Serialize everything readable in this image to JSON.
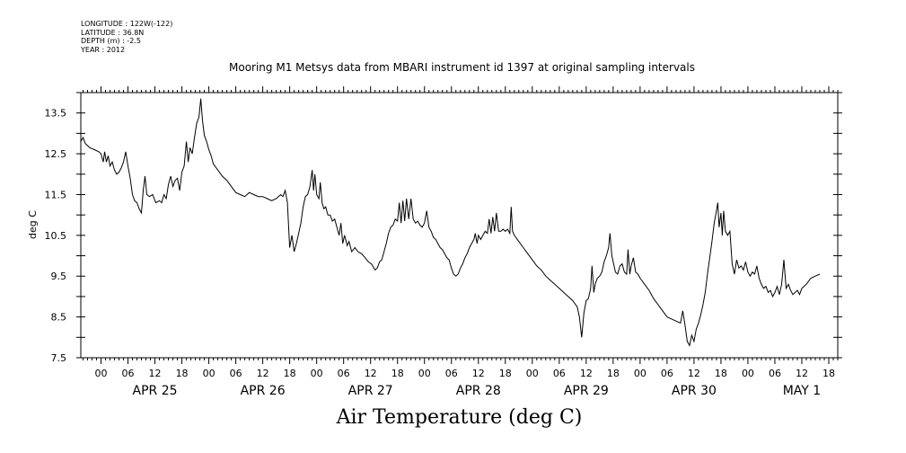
{
  "header": {
    "longitude": "LONGITUDE : 122W(-122)",
    "latitude": "LATITUDE : 36.8N",
    "depth": "DEPTH (m) : -2.5",
    "year": "YEAR : 2012"
  },
  "chart_data": {
    "type": "line",
    "title": "Mooring M1 Metsys data from MBARI instrument id 1397 at original sampling intervals",
    "xlabel": "Air Temperature (deg C)",
    "ylabel": "deg C",
    "ylim": [
      7.5,
      14.0
    ],
    "yticks": [
      "7.5",
      "8.5",
      "9.5",
      "10.5",
      "11.5",
      "12.5",
      "13.5"
    ],
    "xlim_hours": [
      -4.5,
      164
    ],
    "x_unit": "hours from 2012-04-25 00:00",
    "xtick_hours": [
      "00",
      "06",
      "12",
      "18",
      "00",
      "06",
      "12",
      "18",
      "00",
      "06",
      "12",
      "18",
      "00",
      "06",
      "12",
      "18",
      "00",
      "06",
      "12",
      "18",
      "00",
      "06",
      "12",
      "18",
      "00",
      "06",
      "12",
      "18"
    ],
    "day_labels": [
      "APR 25",
      "APR 26",
      "APR 27",
      "APR 28",
      "APR 29",
      "APR 30",
      "MAY  1"
    ],
    "series": [
      {
        "color": "#000000",
        "points": [
          [
            -4.5,
            12.8
          ],
          [
            -4,
            12.9
          ],
          [
            -3.5,
            12.75
          ],
          [
            -2.5,
            12.65
          ],
          [
            -1.5,
            12.6
          ],
          [
            -0.5,
            12.55
          ],
          [
            0,
            12.5
          ],
          [
            0.5,
            12.3
          ],
          [
            0.8,
            12.55
          ],
          [
            1.2,
            12.3
          ],
          [
            1.6,
            12.45
          ],
          [
            2,
            12.2
          ],
          [
            2.5,
            12.3
          ],
          [
            3,
            12.1
          ],
          [
            3.5,
            12.0
          ],
          [
            4,
            12.05
          ],
          [
            4.5,
            12.15
          ],
          [
            5,
            12.3
          ],
          [
            5.5,
            12.55
          ],
          [
            6,
            12.2
          ],
          [
            6.5,
            11.9
          ],
          [
            7,
            11.5
          ],
          [
            7.5,
            11.35
          ],
          [
            8,
            11.3
          ],
          [
            8.5,
            11.15
          ],
          [
            9,
            11.05
          ],
          [
            9.4,
            11.6
          ],
          [
            9.8,
            11.95
          ],
          [
            10.2,
            11.5
          ],
          [
            10.8,
            11.45
          ],
          [
            11.5,
            11.5
          ],
          [
            12.2,
            11.3
          ],
          [
            13,
            11.35
          ],
          [
            13.5,
            11.3
          ],
          [
            14,
            11.5
          ],
          [
            14.5,
            11.4
          ],
          [
            15,
            11.75
          ],
          [
            15.5,
            11.95
          ],
          [
            16,
            11.7
          ],
          [
            16.5,
            11.85
          ],
          [
            17,
            11.9
          ],
          [
            17.5,
            11.6
          ],
          [
            18,
            12.05
          ],
          [
            18.5,
            12.2
          ],
          [
            19,
            12.8
          ],
          [
            19.4,
            12.3
          ],
          [
            19.8,
            12.65
          ],
          [
            20.3,
            12.5
          ],
          [
            20.8,
            12.9
          ],
          [
            21.3,
            13.25
          ],
          [
            21.8,
            13.4
          ],
          [
            22.2,
            13.85
          ],
          [
            22.6,
            13.3
          ],
          [
            23,
            12.95
          ],
          [
            23.5,
            12.8
          ],
          [
            24,
            12.6
          ],
          [
            24.5,
            12.45
          ],
          [
            25,
            12.25
          ],
          [
            26,
            12.1
          ],
          [
            27,
            11.95
          ],
          [
            28,
            11.85
          ],
          [
            29,
            11.7
          ],
          [
            30,
            11.55
          ],
          [
            31,
            11.5
          ],
          [
            32,
            11.45
          ],
          [
            33,
            11.55
          ],
          [
            34,
            11.5
          ],
          [
            35,
            11.45
          ],
          [
            36,
            11.45
          ],
          [
            37,
            11.4
          ],
          [
            38,
            11.35
          ],
          [
            39,
            11.4
          ],
          [
            40,
            11.5
          ],
          [
            40.5,
            11.45
          ],
          [
            41,
            11.6
          ],
          [
            41.5,
            11.3
          ],
          [
            42,
            10.2
          ],
          [
            42.5,
            10.5
          ],
          [
            43,
            10.1
          ],
          [
            43.5,
            10.3
          ],
          [
            44,
            10.55
          ],
          [
            44.5,
            10.8
          ],
          [
            45,
            11.2
          ],
          [
            45.5,
            11.45
          ],
          [
            46,
            11.5
          ],
          [
            46.5,
            11.7
          ],
          [
            47,
            12.1
          ],
          [
            47.3,
            11.6
          ],
          [
            47.6,
            12.0
          ],
          [
            48,
            11.5
          ],
          [
            48.5,
            11.4
          ],
          [
            48.8,
            11.8
          ],
          [
            49.2,
            11.3
          ],
          [
            49.6,
            11.15
          ],
          [
            50,
            11.2
          ],
          [
            50.5,
            11.0
          ],
          [
            51,
            11.0
          ],
          [
            51.5,
            10.85
          ],
          [
            52,
            10.9
          ],
          [
            52.5,
            10.7
          ],
          [
            53,
            10.5
          ],
          [
            53.4,
            10.8
          ],
          [
            53.8,
            10.3
          ],
          [
            54.2,
            10.5
          ],
          [
            54.8,
            10.25
          ],
          [
            55.2,
            10.35
          ],
          [
            55.8,
            10.1
          ],
          [
            56.5,
            10.2
          ],
          [
            57.2,
            10.1
          ],
          [
            58,
            10.05
          ],
          [
            58.8,
            9.95
          ],
          [
            59.5,
            9.85
          ],
          [
            60.2,
            9.8
          ],
          [
            61,
            9.65
          ],
          [
            61.5,
            9.7
          ],
          [
            62,
            9.85
          ],
          [
            62.5,
            9.9
          ],
          [
            63,
            10.1
          ],
          [
            63.5,
            10.3
          ],
          [
            64,
            10.55
          ],
          [
            64.5,
            10.7
          ],
          [
            65,
            10.75
          ],
          [
            65.5,
            10.9
          ],
          [
            66,
            10.85
          ],
          [
            66.4,
            11.3
          ],
          [
            66.8,
            10.8
          ],
          [
            67.2,
            11.35
          ],
          [
            67.6,
            10.85
          ],
          [
            68,
            11.4
          ],
          [
            68.5,
            10.9
          ],
          [
            69,
            11.4
          ],
          [
            69.5,
            10.9
          ],
          [
            70,
            10.8
          ],
          [
            70.5,
            10.85
          ],
          [
            71,
            10.75
          ],
          [
            71.5,
            10.7
          ],
          [
            72,
            10.8
          ],
          [
            72.5,
            11.1
          ],
          [
            73,
            10.7
          ],
          [
            73.5,
            10.6
          ],
          [
            74,
            10.45
          ],
          [
            74.5,
            10.4
          ],
          [
            75,
            10.3
          ],
          [
            75.5,
            10.2
          ],
          [
            76,
            10.15
          ],
          [
            76.5,
            10.05
          ],
          [
            77,
            9.95
          ],
          [
            77.5,
            9.9
          ],
          [
            78,
            9.7
          ],
          [
            78.5,
            9.55
          ],
          [
            79,
            9.5
          ],
          [
            79.5,
            9.55
          ],
          [
            80,
            9.7
          ],
          [
            80.5,
            9.8
          ],
          [
            81,
            9.95
          ],
          [
            81.5,
            10.05
          ],
          [
            82,
            10.2
          ],
          [
            82.5,
            10.3
          ],
          [
            83,
            10.4
          ],
          [
            83.3,
            10.55
          ],
          [
            83.7,
            10.3
          ],
          [
            84,
            10.5
          ],
          [
            84.5,
            10.4
          ],
          [
            85,
            10.5
          ],
          [
            85.5,
            10.6
          ],
          [
            86,
            10.55
          ],
          [
            86.4,
            10.9
          ],
          [
            86.8,
            10.55
          ],
          [
            87.2,
            10.95
          ],
          [
            87.6,
            10.6
          ],
          [
            88,
            11.05
          ],
          [
            88.5,
            10.6
          ],
          [
            89,
            10.6
          ],
          [
            89.5,
            10.65
          ],
          [
            90,
            10.6
          ],
          [
            90.5,
            10.65
          ],
          [
            91,
            10.55
          ],
          [
            91.3,
            11.2
          ],
          [
            91.6,
            10.6
          ],
          [
            92,
            10.5
          ],
          [
            93,
            10.35
          ],
          [
            94,
            10.2
          ],
          [
            95,
            10.05
          ],
          [
            96,
            9.9
          ],
          [
            97,
            9.75
          ],
          [
            98,
            9.65
          ],
          [
            99,
            9.5
          ],
          [
            100,
            9.4
          ],
          [
            101,
            9.3
          ],
          [
            102,
            9.2
          ],
          [
            103,
            9.1
          ],
          [
            104,
            9.0
          ],
          [
            105,
            8.9
          ],
          [
            106,
            8.75
          ],
          [
            106.5,
            8.5
          ],
          [
            107,
            8.0
          ],
          [
            107.5,
            8.6
          ],
          [
            108,
            8.9
          ],
          [
            108.5,
            8.95
          ],
          [
            109,
            9.2
          ],
          [
            109.3,
            9.75
          ],
          [
            109.7,
            9.1
          ],
          [
            110,
            9.3
          ],
          [
            110.5,
            9.45
          ],
          [
            111,
            9.5
          ],
          [
            111.5,
            9.6
          ],
          [
            112,
            9.85
          ],
          [
            112.5,
            10.0
          ],
          [
            113,
            10.2
          ],
          [
            113.3,
            10.55
          ],
          [
            113.7,
            10.0
          ],
          [
            114,
            9.85
          ],
          [
            114.5,
            9.6
          ],
          [
            115,
            9.55
          ],
          [
            115.5,
            9.75
          ],
          [
            116,
            9.8
          ],
          [
            116.5,
            9.6
          ],
          [
            117,
            9.55
          ],
          [
            117.3,
            10.15
          ],
          [
            117.7,
            9.55
          ],
          [
            118,
            9.75
          ],
          [
            118.5,
            9.95
          ],
          [
            119,
            9.6
          ],
          [
            119.5,
            9.55
          ],
          [
            120,
            9.45
          ],
          [
            121,
            9.3
          ],
          [
            122,
            9.15
          ],
          [
            123,
            8.95
          ],
          [
            124,
            8.8
          ],
          [
            125,
            8.65
          ],
          [
            126,
            8.5
          ],
          [
            127,
            8.45
          ],
          [
            128,
            8.4
          ],
          [
            129,
            8.35
          ],
          [
            129.5,
            8.65
          ],
          [
            130,
            8.3
          ],
          [
            130.5,
            7.9
          ],
          [
            131,
            7.8
          ],
          [
            131.5,
            8.05
          ],
          [
            132,
            7.9
          ],
          [
            132.5,
            8.2
          ],
          [
            133,
            8.35
          ],
          [
            133.5,
            8.55
          ],
          [
            134,
            8.8
          ],
          [
            134.5,
            9.1
          ],
          [
            135,
            9.55
          ],
          [
            135.5,
            9.95
          ],
          [
            136,
            10.35
          ],
          [
            136.5,
            10.8
          ],
          [
            137,
            11.1
          ],
          [
            137.3,
            11.3
          ],
          [
            137.6,
            10.7
          ],
          [
            138,
            11.05
          ],
          [
            138.3,
            10.5
          ],
          [
            138.6,
            11.1
          ],
          [
            139,
            10.6
          ],
          [
            139.5,
            10.5
          ],
          [
            140,
            10.6
          ],
          [
            140.5,
            9.8
          ],
          [
            141,
            9.55
          ],
          [
            141.5,
            9.9
          ],
          [
            142,
            9.7
          ],
          [
            142.5,
            9.75
          ],
          [
            143,
            9.65
          ],
          [
            143.5,
            9.85
          ],
          [
            144,
            9.6
          ],
          [
            144.5,
            9.5
          ],
          [
            145,
            9.6
          ],
          [
            145.5,
            9.55
          ],
          [
            146,
            9.75
          ],
          [
            146.5,
            9.45
          ],
          [
            147,
            9.3
          ],
          [
            147.5,
            9.2
          ],
          [
            148,
            9.25
          ],
          [
            148.5,
            9.1
          ],
          [
            149,
            9.15
          ],
          [
            149.5,
            9.0
          ],
          [
            150,
            9.1
          ],
          [
            150.5,
            9.25
          ],
          [
            151,
            9.05
          ],
          [
            151.5,
            9.3
          ],
          [
            152,
            9.9
          ],
          [
            152.5,
            9.2
          ],
          [
            153,
            9.3
          ],
          [
            153.5,
            9.15
          ],
          [
            154,
            9.05
          ],
          [
            154.5,
            9.1
          ],
          [
            155,
            9.15
          ],
          [
            155.5,
            9.05
          ],
          [
            156,
            9.2
          ],
          [
            157,
            9.3
          ],
          [
            158,
            9.45
          ],
          [
            159,
            9.5
          ],
          [
            160,
            9.55
          ]
        ]
      }
    ]
  }
}
